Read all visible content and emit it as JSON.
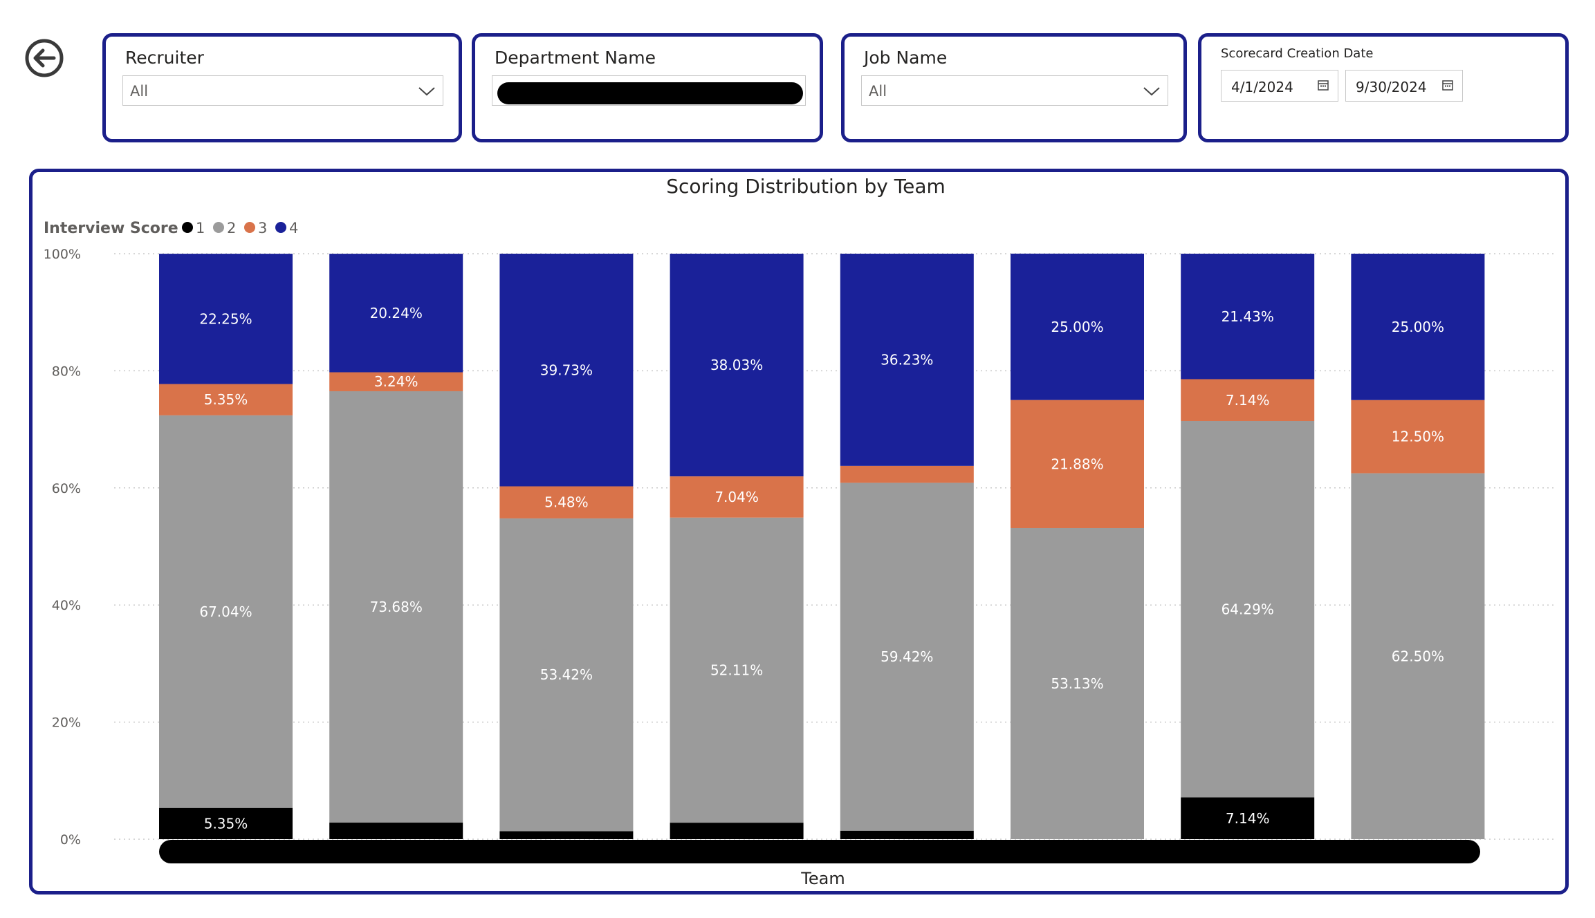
{
  "slicers": {
    "recruiter": {
      "label": "Recruiter",
      "value": "All"
    },
    "department": {
      "label": "Department Name"
    },
    "job": {
      "label": "Job Name",
      "value": "All"
    },
    "date": {
      "label": "Scorecard Creation Date",
      "start": "4/1/2024",
      "end": "9/30/2024"
    }
  },
  "icons": {
    "back": "back-arrow-circle-icon",
    "dropdown": "chevron-down-icon",
    "calendar": "calendar-icon"
  },
  "chart_data": {
    "type": "bar",
    "stacked": "100%",
    "title": "Scoring Distribution by Team",
    "legend_title": "Interview Score",
    "legend_position": "top-left",
    "xlabel": "Team",
    "ylabel": "",
    "ylim": [
      0,
      100
    ],
    "yticks": [
      "0%",
      "20%",
      "40%",
      "60%",
      "80%",
      "100%"
    ],
    "grid": true,
    "category_count": 8,
    "series": [
      {
        "name": "1",
        "color": "#000000",
        "values": [
          5.35,
          2.83,
          1.37,
          2.82,
          1.45,
          0,
          7.14,
          0
        ],
        "labels": [
          "5.35%",
          "",
          "",
          "",
          "",
          "",
          "7.14%",
          ""
        ]
      },
      {
        "name": "2",
        "color": "#9B9B9B",
        "values": [
          67.04,
          73.68,
          53.42,
          52.11,
          59.42,
          53.13,
          64.29,
          62.5
        ],
        "labels": [
          "67.04%",
          "73.68%",
          "53.42%",
          "52.11%",
          "59.42%",
          "53.13%",
          "64.29%",
          "62.50%"
        ]
      },
      {
        "name": "3",
        "color": "#D9734A",
        "values": [
          5.35,
          3.24,
          5.48,
          7.04,
          2.9,
          21.88,
          7.14,
          12.5
        ],
        "labels": [
          "5.35%",
          "3.24%",
          "5.48%",
          "7.04%",
          "",
          "21.88%",
          "7.14%",
          "12.50%"
        ]
      },
      {
        "name": "4",
        "color": "#1A2199",
        "values": [
          22.25,
          20.24,
          39.73,
          38.03,
          36.23,
          25.0,
          21.43,
          25.0
        ],
        "labels": [
          "22.25%",
          "20.24%",
          "39.73%",
          "38.03%",
          "36.23%",
          "25.00%",
          "21.43%",
          "25.00%"
        ]
      }
    ]
  }
}
